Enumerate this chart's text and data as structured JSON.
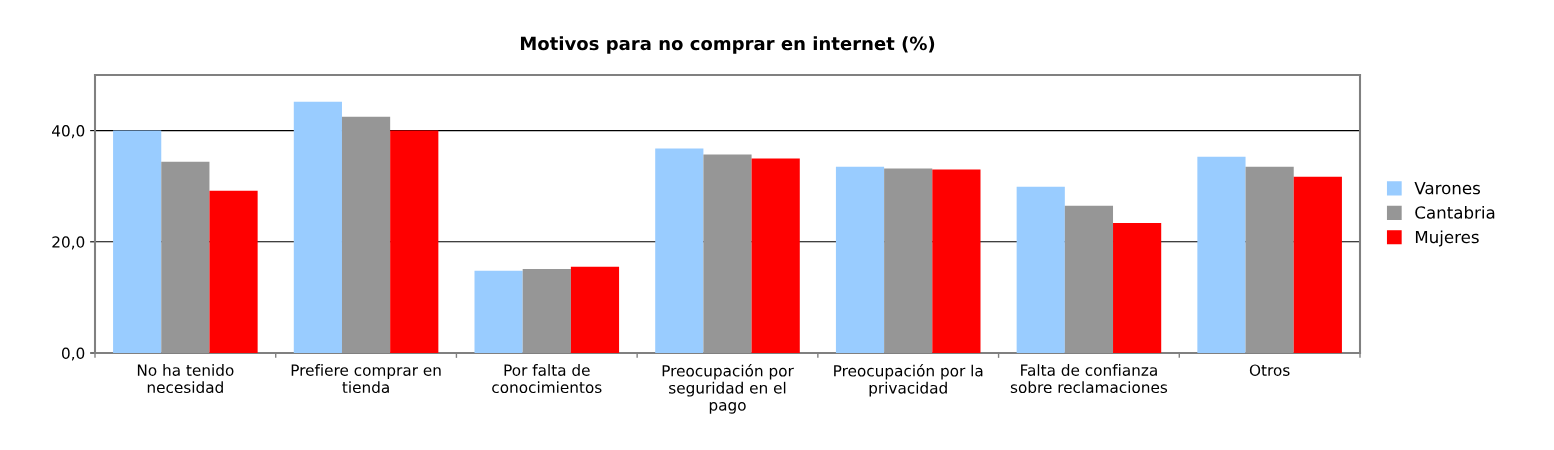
{
  "chart_data": {
    "type": "bar",
    "title": "Motivos para no comprar en internet (%)",
    "categories": [
      "No ha tenido necesidad",
      "Prefiere comprar en tienda",
      "Por falta de conocimientos",
      "Preocupación por seguridad en el pago",
      "Preocupación por la privacidad",
      "Falta de confianza sobre reclamaciones",
      "Otros"
    ],
    "series": [
      {
        "name": "Varones",
        "color": "#99ccff",
        "values": [
          40.0,
          45.2,
          14.8,
          36.8,
          33.5,
          29.9,
          35.3
        ]
      },
      {
        "name": "Cantabria",
        "color": "#969696",
        "values": [
          34.4,
          42.5,
          15.1,
          35.7,
          33.2,
          26.5,
          33.5
        ]
      },
      {
        "name": "Mujeres",
        "color": "#ff0000",
        "values": [
          29.2,
          40.0,
          15.5,
          35.0,
          33.0,
          23.4,
          31.7
        ]
      }
    ],
    "ylim": [
      0,
      50
    ],
    "yticks": [
      {
        "value": 0,
        "label": "0,0"
      },
      {
        "value": 20,
        "label": "20,0"
      },
      {
        "value": 40,
        "label": "40,0"
      }
    ],
    "grid": "y",
    "legend": "right"
  }
}
